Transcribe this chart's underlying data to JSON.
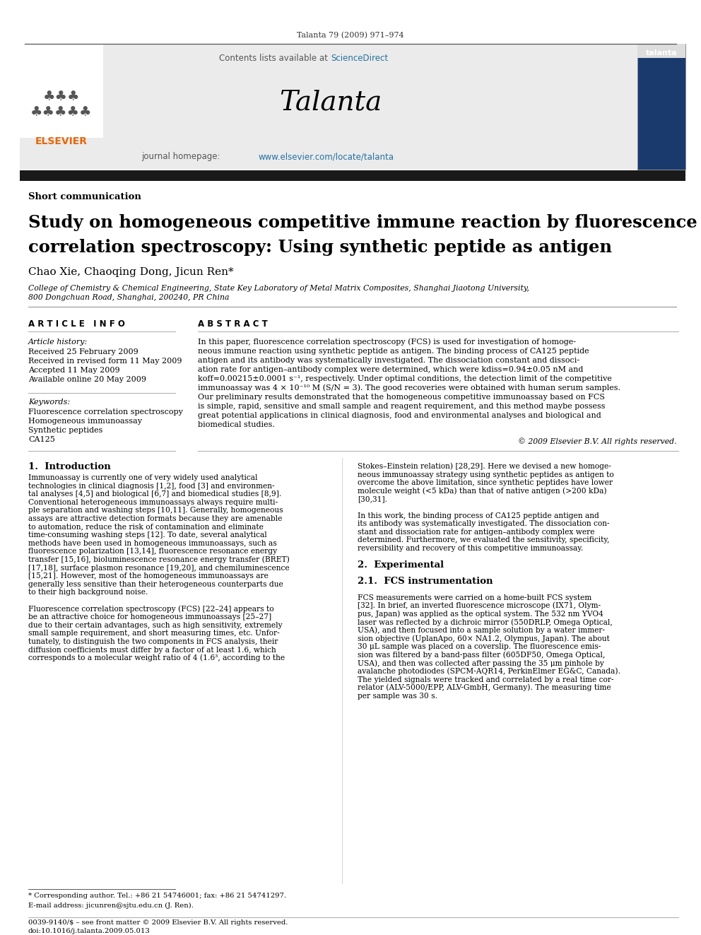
{
  "journal_line": "Talanta 79 (2009) 971–974",
  "header_text": "Contents lists available at ScienceDirect",
  "journal_name": "Talanta",
  "journal_url": "journal homepage: www.elsevier.com/locate/talanta",
  "section_label": "Short communication",
  "title_line1": "Study on homogeneous competitive immune reaction by fluorescence",
  "title_line2": "correlation spectroscopy: Using synthetic peptide as antigen",
  "authors": "Chao Xie, Chaoqing Dong, Jicun Ren*",
  "affiliation1": "College of Chemistry & Chemical Engineering, State Key Laboratory of Metal Matrix Composites, Shanghai Jiaotong University,",
  "affiliation2": "800 Dongchuan Road, Shanghai, 200240, PR China",
  "article_info_title": "A R T I C L E   I N F O",
  "abstract_title": "A B S T R A C T",
  "history_label": "Article history:",
  "history_lines": [
    "Received 25 February 2009",
    "Received in revised form 11 May 2009",
    "Accepted 11 May 2009",
    "Available online 20 May 2009"
  ],
  "keywords_label": "Keywords:",
  "keywords": [
    "Fluorescence correlation spectroscopy",
    "Homogeneous immunoassay",
    "Synthetic peptides",
    "CA125"
  ],
  "abstract_lines": [
    "In this paper, fluorescence correlation spectroscopy (FCS) is used for investigation of homoge-",
    "neous immune reaction using synthetic peptide as antigen. The binding process of CA125 peptide",
    "antigen and its antibody was systematically investigated. The dissociation constant and dissoci-",
    "ation rate for antigen–antibody complex were determined, which were kdiss=0.94±0.05 nM and",
    "koff=0.00215±0.0001 s⁻¹, respectively. Under optimal conditions, the detection limit of the competitive",
    "immunoassay was 4 × 10⁻¹⁰ M (S/N = 3). The good recoveries were obtained with human serum samples.",
    "Our preliminary results demonstrated that the homogeneous competitive immunoassay based on FCS",
    "is simple, rapid, sensitive and small sample and reagent requirement, and this method maybe possess",
    "great potential applications in clinical diagnosis, food and environmental analyses and biological and",
    "biomedical studies."
  ],
  "copyright": "© 2009 Elsevier B.V. All rights reserved.",
  "intro_title": "1.  Introduction",
  "intro_col1_lines": [
    "Immunoassay is currently one of very widely used analytical",
    "technologies in clinical diagnosis [1,2], food [3] and environmen-",
    "tal analyses [4,5] and biological [6,7] and biomedical studies [8,9].",
    "Conventional heterogeneous immunoassays always require multi-",
    "ple separation and washing steps [10,11]. Generally, homogeneous",
    "assays are attractive detection formats because they are amenable",
    "to automation, reduce the risk of contamination and eliminate",
    "time-consuming washing steps [12]. To date, several analytical",
    "methods have been used in homogeneous immunoassays, such as",
    "fluorescence polarization [13,14], fluorescence resonance energy",
    "transfer [15,16], bioluminescence resonance energy transfer (BRET)",
    "[17,18], surface plasmon resonance [19,20], and chemiluminescence",
    "[15,21]. However, most of the homogeneous immunoassays are",
    "generally less sensitive than their heterogeneous counterparts due",
    "to their high background noise.",
    "",
    "Fluorescence correlation spectroscopy (FCS) [22–24] appears to",
    "be an attractive choice for homogeneous immunoassays [25–27]",
    "due to their certain advantages, such as high sensitivity, extremely",
    "small sample requirement, and short measuring times, etc. Unfor-",
    "tunately, to distinguish the two components in FCS analysis, their",
    "diffusion coefficients must differ by a factor of at least 1.6, which",
    "corresponds to a molecular weight ratio of 4 (1.6³, according to the"
  ],
  "intro_col2_lines": [
    "Stokes–Einstein relation) [28,29]. Here we devised a new homoge-",
    "neous immunoassay strategy using synthetic peptides as antigen to",
    "overcome the above limitation, since synthetic peptides have lower",
    "molecule weight (<5 kDa) than that of native antigen (>200 kDa)",
    "[30,31].",
    "",
    "In this work, the binding process of CA125 peptide antigen and",
    "its antibody was systematically investigated. The dissociation con-",
    "stant and dissociation rate for antigen–antibody complex were",
    "determined. Furthermore, we evaluated the sensitivity, specificity,",
    "reversibility and recovery of this competitive immunoassay.",
    "",
    "2.  Experimental",
    "",
    "2.1.  FCS instrumentation",
    "",
    "FCS measurements were carried on a home-built FCS system",
    "[32]. In brief, an inverted fluorescence microscope (IX71, Olym-",
    "pus, Japan) was applied as the optical system. The 532 nm YVO4",
    "laser was reflected by a dichroic mirror (550DRLP, Omega Optical,",
    "USA), and then focused into a sample solution by a water immer-",
    "sion objective (UplanApo, 60× NA1.2, Olympus, Japan). The about",
    "30 μL sample was placed on a coverslip. The fluorescence emis-",
    "sion was filtered by a band-pass filter (605DF50, Omega Optical,",
    "USA), and then was collected after passing the 35 μm pinhole by",
    "avalanche photodiodes (SPCM-AQR14, PerkinElmer EG&C, Canada).",
    "The yielded signals were tracked and correlated by a real time cor-",
    "relator (ALV-5000/EPP, ALV-GmbH, Germany). The measuring time",
    "per sample was 30 s."
  ],
  "footnote_star": "* Corresponding author. Tel.: +86 21 54746001; fax: +86 21 54741297.",
  "footnote_email": "E-mail address: jicunren@sjtu.edu.cn (J. Ren).",
  "footer_issn": "0039-9140/$ – see front matter © 2009 Elsevier B.V. All rights reserved.",
  "footer_doi": "doi:10.1016/j.talanta.2009.05.013",
  "bg_color": "#ffffff",
  "dark_bar_color": "#1a1a1a",
  "elsevier_orange": "#e8670a",
  "link_color": "#2471a3"
}
